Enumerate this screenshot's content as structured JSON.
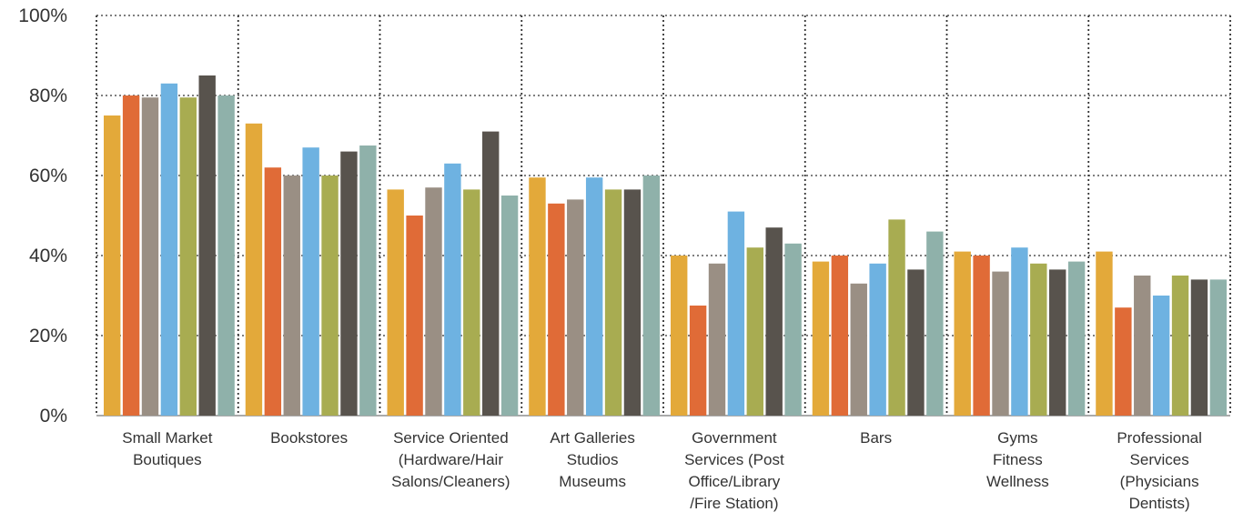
{
  "chart_data": {
    "type": "bar",
    "title": "",
    "xlabel": "",
    "ylabel": "",
    "ylim": [
      0,
      100
    ],
    "y_ticks": [
      "0%",
      "20%",
      "40%",
      "60%",
      "80%",
      "100%"
    ],
    "grid": true,
    "grid_style": "dotted",
    "legend": "none",
    "categories": [
      [
        "Small Market",
        "Boutiques"
      ],
      [
        "Bookstores"
      ],
      [
        "Service Oriented",
        "(Hardware/Hair",
        "Salons/Cleaners)"
      ],
      [
        "Art Galleries",
        "Studios",
        "Museums"
      ],
      [
        "Government",
        "Services (Post",
        "Office/Library",
        "/Fire Station)"
      ],
      [
        "Bars"
      ],
      [
        "Gyms",
        "Fitness",
        "Wellness"
      ],
      [
        "Professional",
        "Services",
        "(Physicians",
        "Dentists)"
      ]
    ],
    "series": [
      {
        "color": "#E3A93A",
        "values": [
          75,
          73,
          56.5,
          59.5,
          40,
          38.5,
          41,
          41
        ]
      },
      {
        "color": "#E06B37",
        "values": [
          80,
          62,
          50,
          53,
          27.5,
          40,
          40,
          27
        ]
      },
      {
        "color": "#9A8F84",
        "values": [
          79.5,
          60,
          57,
          54,
          38,
          33,
          36,
          35
        ]
      },
      {
        "color": "#6EB2E1",
        "values": [
          83,
          67,
          63,
          59.5,
          51,
          38,
          42,
          30
        ]
      },
      {
        "color": "#A8AC51",
        "values": [
          79.5,
          60,
          56.5,
          56.5,
          42,
          49,
          38,
          35
        ]
      },
      {
        "color": "#58534D",
        "values": [
          85,
          66,
          71,
          56.5,
          47,
          36.5,
          36.5,
          34
        ]
      },
      {
        "color": "#8FB1AA",
        "values": [
          80,
          67.5,
          55,
          60,
          43,
          46,
          38.5,
          34
        ]
      }
    ]
  }
}
